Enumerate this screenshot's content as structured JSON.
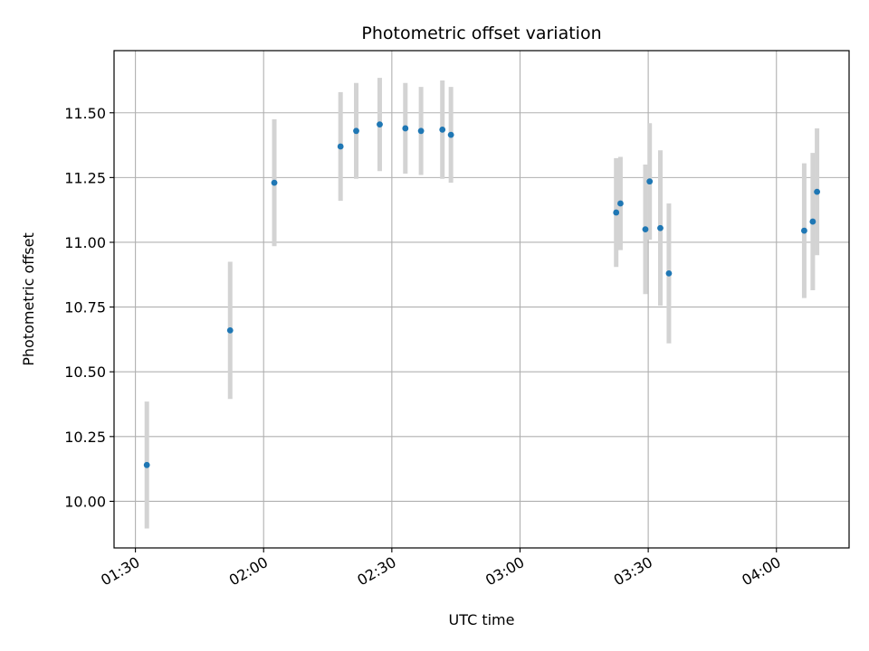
{
  "chart_data": {
    "type": "scatter",
    "title": "Photometric offset variation",
    "xlabel": "UTC time",
    "ylabel": "Photometric offset",
    "xlim": [
      "01:25",
      "04:17"
    ],
    "ylim": [
      9.82,
      11.74
    ],
    "grid": true,
    "x_ticks": [
      "01:30",
      "02:00",
      "02:30",
      "03:00",
      "03:30",
      "04:00"
    ],
    "y_ticks": [
      "10.00",
      "10.25",
      "10.50",
      "10.75",
      "11.00",
      "11.25",
      "11.50"
    ],
    "colors": {
      "points": "#1f77b4",
      "error_bars": "#d3d3d3",
      "grid": "#b0b0b0"
    },
    "points": [
      {
        "x": "01:32:40",
        "y": 10.14,
        "err": 0.245
      },
      {
        "x": "01:52:10",
        "y": 10.66,
        "err": 0.265
      },
      {
        "x": "02:02:30",
        "y": 11.23,
        "err": 0.245
      },
      {
        "x": "02:18:00",
        "y": 11.37,
        "err": 0.21
      },
      {
        "x": "02:21:40",
        "y": 11.43,
        "err": 0.185
      },
      {
        "x": "02:27:10",
        "y": 11.455,
        "err": 0.18
      },
      {
        "x": "02:33:10",
        "y": 11.44,
        "err": 0.175
      },
      {
        "x": "02:36:50",
        "y": 11.43,
        "err": 0.17
      },
      {
        "x": "02:41:50",
        "y": 11.435,
        "err": 0.19
      },
      {
        "x": "02:43:50",
        "y": 11.415,
        "err": 0.185
      },
      {
        "x": "03:22:30",
        "y": 11.115,
        "err": 0.21
      },
      {
        "x": "03:23:30",
        "y": 11.15,
        "err": 0.18
      },
      {
        "x": "03:29:20",
        "y": 11.05,
        "err": 0.25
      },
      {
        "x": "03:30:20",
        "y": 11.235,
        "err": 0.225
      },
      {
        "x": "03:32:50",
        "y": 11.055,
        "err": 0.3
      },
      {
        "x": "03:34:50",
        "y": 10.88,
        "err": 0.27
      },
      {
        "x": "04:06:30",
        "y": 11.045,
        "err": 0.26
      },
      {
        "x": "04:08:30",
        "y": 11.08,
        "err": 0.265
      },
      {
        "x": "04:09:30",
        "y": 11.195,
        "err": 0.245
      }
    ]
  }
}
